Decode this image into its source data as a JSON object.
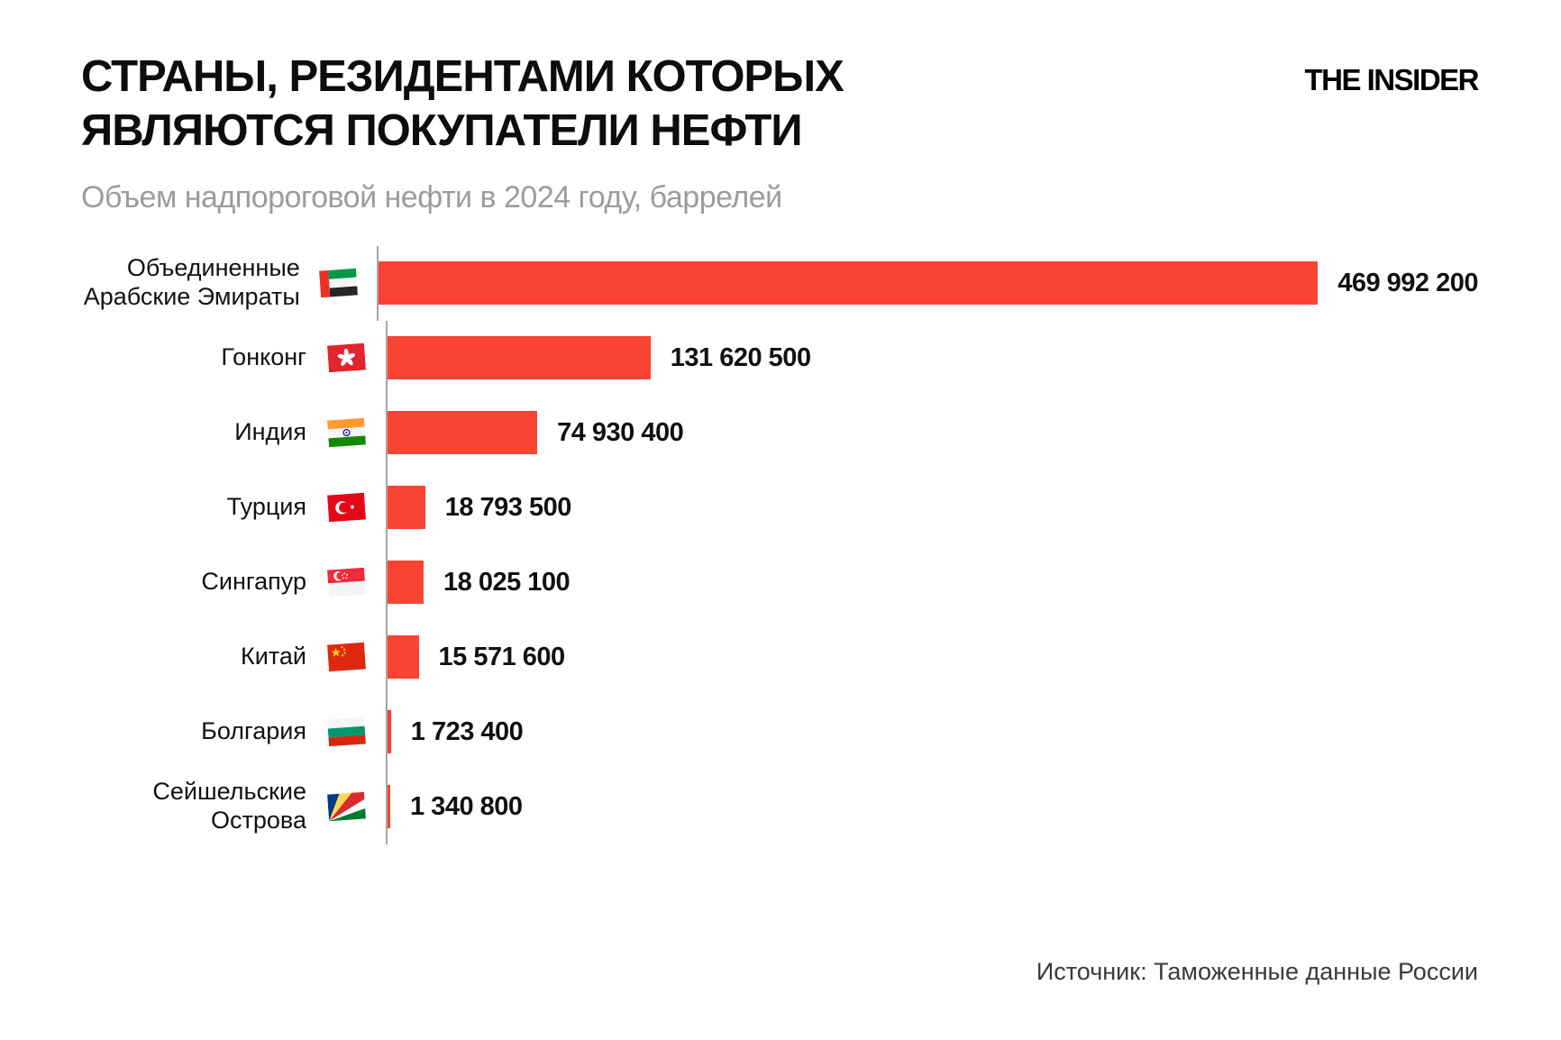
{
  "header": {
    "title_line1": "СТРАНЫ, РЕЗИДЕНТАМИ КОТОРЫХ",
    "title_line2": "ЯВЛЯЮТСЯ ПОКУПАТЕЛИ НЕФТИ",
    "subtitle": "Объем надпороговой нефти в 2024 году, баррелей",
    "logo": "THE INSIDER"
  },
  "chart_data": {
    "type": "bar",
    "orientation": "horizontal",
    "title": "СТРАНЫ, РЕЗИДЕНТАМИ КОТОРЫХ ЯВЛЯЮТСЯ ПОКУПАТЕЛИ НЕФТИ",
    "subtitle": "Объем надпороговой нефти в 2024 году, баррелей",
    "unit": "баррелей",
    "year": "2024",
    "bar_color": "#fa4332",
    "axis_color": "#a6a6a6",
    "legend": "none",
    "grid": "off",
    "xlim": [
      0,
      469992200
    ],
    "categories": [
      "Объединенные Арабские Эмираты",
      "Гонконг",
      "Индия",
      "Турция",
      "Сингапур",
      "Китай",
      "Болгария",
      "Сейшельские Острова"
    ],
    "values": [
      469992200,
      131620500,
      74930400,
      18793500,
      18025100,
      15571600,
      1723400,
      1340800
    ],
    "rows": [
      {
        "label": "Объединенные Арабские Эмираты",
        "flag": "flag-uae-icon",
        "value": 469992200,
        "value_display": "469 992 200"
      },
      {
        "label": "Гонконг",
        "flag": "flag-hong-kong-icon",
        "value": 131620500,
        "value_display": "131 620 500"
      },
      {
        "label": "Индия",
        "flag": "flag-india-icon",
        "value": 74930400,
        "value_display": "74 930 400"
      },
      {
        "label": "Турция",
        "flag": "flag-turkey-icon",
        "value": 18793500,
        "value_display": "18 793 500"
      },
      {
        "label": "Сингапур",
        "flag": "flag-singapore-icon",
        "value": 18025100,
        "value_display": "18 025 100"
      },
      {
        "label": "Китай",
        "flag": "flag-china-icon",
        "value": 15571600,
        "value_display": "15 571 600"
      },
      {
        "label": "Болгария",
        "flag": "flag-bulgaria-icon",
        "value": 1723400,
        "value_display": "1 723 400"
      },
      {
        "label": "Сейшельские Острова",
        "flag": "flag-seychelles-icon",
        "value": 1340800,
        "value_display": "1 340 800"
      }
    ]
  },
  "footer": {
    "source": "Источник: Таможенные данные России"
  }
}
